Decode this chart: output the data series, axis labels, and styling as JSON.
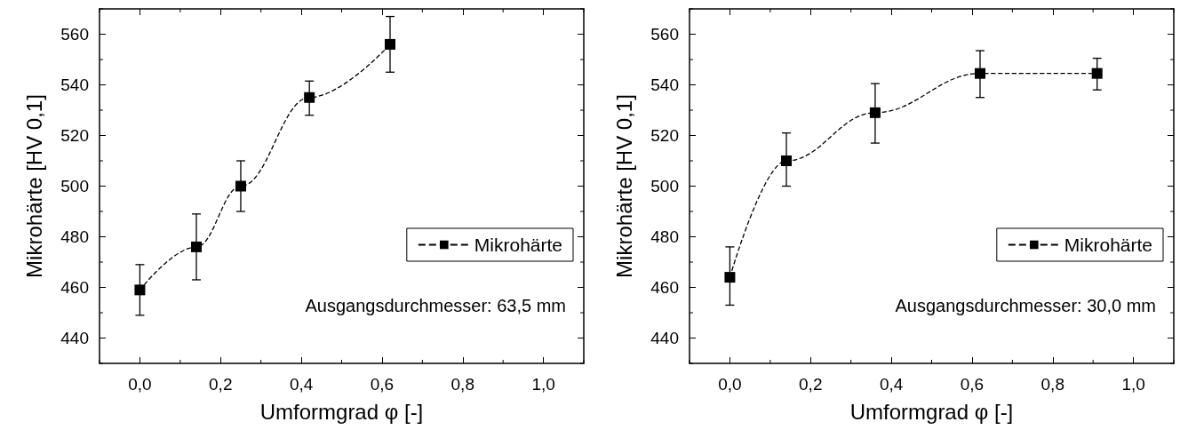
{
  "chart_data": [
    {
      "type": "line",
      "xlabel": "Umformgrad φ [-]",
      "ylabel": "Mikrohärte [HV 0,1]",
      "xlim": [
        -0.1,
        1.1
      ],
      "ylim": [
        430,
        570
      ],
      "xticks": [
        {
          "value": 0,
          "label": "0,0"
        },
        {
          "value": 0.2,
          "label": "0,2"
        },
        {
          "value": 0.4,
          "label": "0,4"
        },
        {
          "value": 0.6,
          "label": "0,6"
        },
        {
          "value": 0.8,
          "label": "0,8"
        },
        {
          "value": 1,
          "label": "1,0"
        }
      ],
      "yticks": [
        440,
        460,
        480,
        500,
        520,
        540,
        560
      ],
      "legend": "bottom right",
      "marker": "square",
      "line_style": "dashed",
      "grid": false,
      "annotations": [
        "Ausgangsdurchmesser: 63,5 mm"
      ],
      "series": [
        {
          "name": "Mikrohärte",
          "color": "#000000",
          "x": [
            0,
            0.14,
            0.25,
            0.42,
            0.62
          ],
          "values": [
            459,
            476,
            500,
            535,
            556
          ],
          "errors": [
            [
              449,
              469
            ],
            [
              463,
              489
            ],
            [
              490,
              510
            ],
            [
              528,
              541.5
            ],
            [
              545,
              567
            ]
          ]
        }
      ]
    },
    {
      "type": "line",
      "xlabel": "Umformgrad φ [-]",
      "ylabel": "Mikrohärte [HV 0,1]",
      "xlim": [
        -0.1,
        1.1
      ],
      "ylim": [
        430,
        570
      ],
      "xticks": [
        {
          "value": 0,
          "label": "0,0"
        },
        {
          "value": 0.2,
          "label": "0,2"
        },
        {
          "value": 0.4,
          "label": "0,4"
        },
        {
          "value": 0.6,
          "label": "0,6"
        },
        {
          "value": 0.8,
          "label": "0,8"
        },
        {
          "value": 1,
          "label": "1,0"
        }
      ],
      "yticks": [
        440,
        460,
        480,
        500,
        520,
        540,
        560
      ],
      "legend": "bottom right",
      "marker": "square",
      "line_style": "dashed",
      "grid": false,
      "annotations": [
        "Ausgangsdurchmesser: 30,0 mm"
      ],
      "series": [
        {
          "name": "Mikrohärte",
          "color": "#000000",
          "x": [
            0,
            0.14,
            0.36,
            0.62,
            0.91
          ],
          "values": [
            464,
            510,
            529,
            544.5,
            544.5
          ],
          "errors": [
            [
              453,
              476
            ],
            [
              500,
              521
            ],
            [
              517,
              540.5
            ],
            [
              535,
              553.5
            ],
            [
              538,
              550.5
            ]
          ]
        }
      ]
    }
  ]
}
